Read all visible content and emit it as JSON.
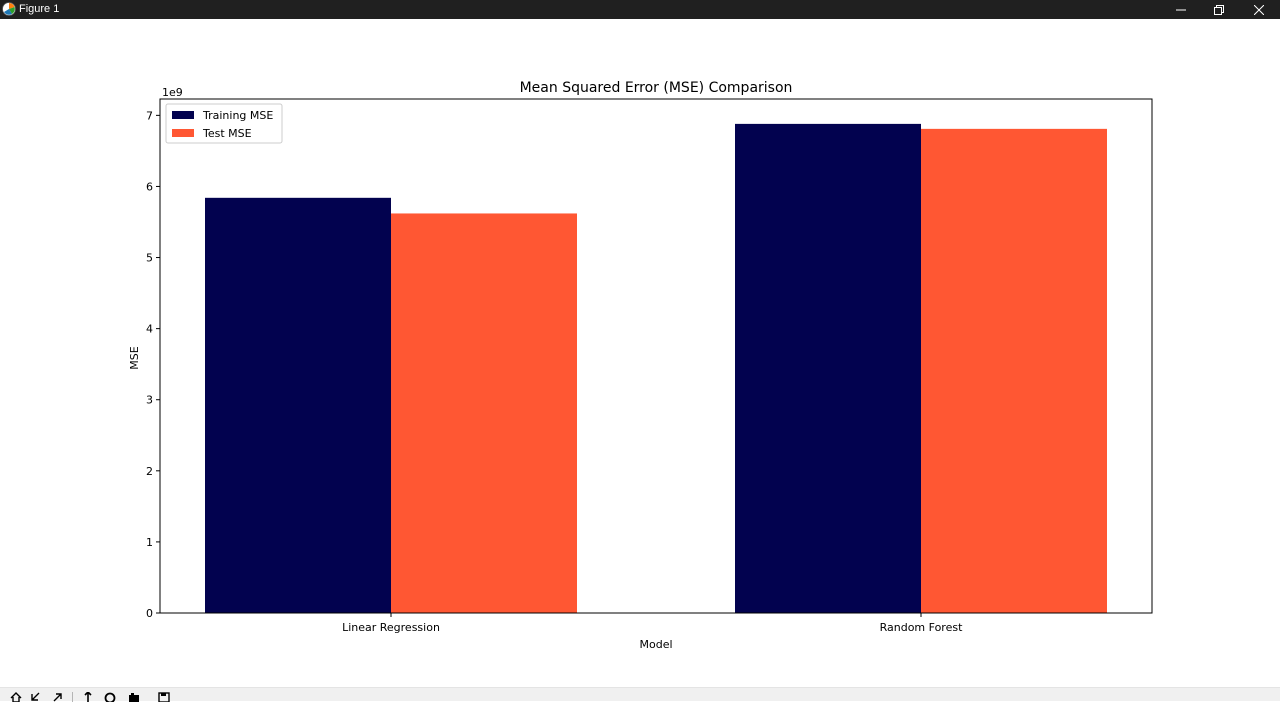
{
  "window": {
    "title": "Figure 1",
    "controls": {
      "minimize": "minimize-icon",
      "restore": "restore-icon",
      "close": "close-icon"
    }
  },
  "toolbar": {
    "tools": [
      "home-icon",
      "back-icon",
      "forward-icon",
      "pan-icon",
      "zoom-icon",
      "configure-subplots-icon",
      "save-icon"
    ]
  },
  "colors": {
    "training": "#02024f",
    "test": "#ff5733"
  },
  "chart_data": {
    "type": "bar",
    "title": "Mean Squared Error (MSE) Comparison",
    "xlabel": "Model",
    "ylabel": "MSE",
    "y_offset_label": "1e9",
    "categories": [
      "Linear Regression",
      "Random Forest"
    ],
    "series": [
      {
        "name": "Training MSE",
        "values": [
          5.84,
          6.88
        ]
      },
      {
        "name": "Test MSE",
        "values": [
          5.62,
          6.81
        ]
      }
    ],
    "ylim": [
      0,
      7.23
    ],
    "yticks": [
      0,
      1,
      2,
      3,
      4,
      5,
      6,
      7
    ],
    "legend": "top-left",
    "grid": false
  }
}
